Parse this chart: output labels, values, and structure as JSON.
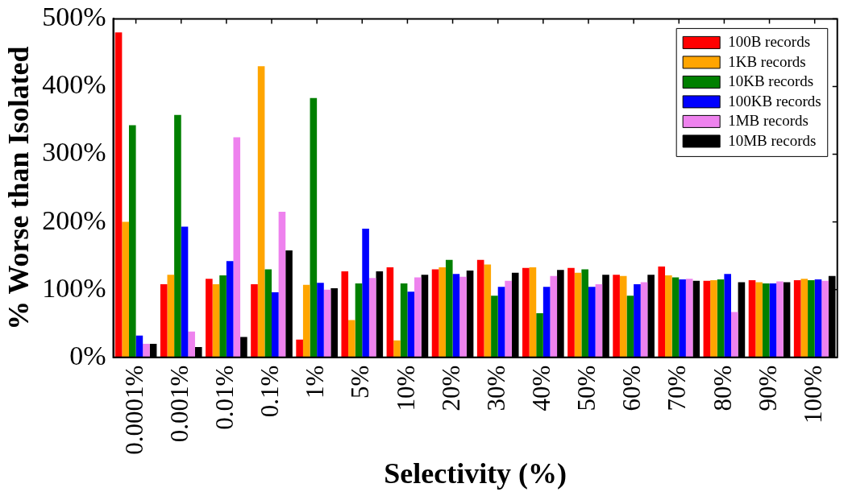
{
  "chart_data": {
    "type": "bar",
    "xlabel": "Selectivity (%)",
    "ylabel": "% Worse than Isolated",
    "categories": [
      "0.0001%",
      "0.001%",
      "0.01%",
      "0.1%",
      "1%",
      "5%",
      "10%",
      "20%",
      "30%",
      "40%",
      "50%",
      "60%",
      "70%",
      "80%",
      "90%",
      "100%"
    ],
    "series": [
      {
        "name": "100B records",
        "color": "#ff0000",
        "values": [
          480,
          108,
          116,
          108,
          26,
          127,
          133,
          130,
          144,
          132,
          132,
          122,
          134,
          113,
          114,
          114
        ]
      },
      {
        "name": "1KB records",
        "color": "#ffa500",
        "values": [
          200,
          122,
          108,
          430,
          107,
          55,
          25,
          133,
          137,
          133,
          125,
          120,
          121,
          114,
          111,
          116
        ]
      },
      {
        "name": "10KB records",
        "color": "#008000",
        "values": [
          343,
          358,
          121,
          130,
          383,
          109,
          109,
          144,
          91,
          65,
          130,
          91,
          118,
          115,
          109,
          114
        ]
      },
      {
        "name": "100KB records",
        "color": "#0000ff",
        "values": [
          32,
          193,
          142,
          96,
          110,
          190,
          97,
          123,
          104,
          104,
          104,
          108,
          115,
          123,
          109,
          115
        ]
      },
      {
        "name": "1MB records",
        "color": "#ee82ee",
        "values": [
          20,
          38,
          325,
          215,
          100,
          117,
          118,
          119,
          113,
          120,
          108,
          111,
          116,
          67,
          112,
          113
        ]
      },
      {
        "name": "10MB records",
        "color": "#000000",
        "values": [
          20,
          15,
          30,
          158,
          102,
          127,
          122,
          128,
          125,
          129,
          122,
          122,
          113,
          111,
          111,
          120
        ]
      }
    ],
    "ylim": [
      0,
      500
    ],
    "yticks": [
      {
        "value": 0,
        "label": "0%"
      },
      {
        "value": 100,
        "label": "100%"
      },
      {
        "value": 200,
        "label": "200%"
      },
      {
        "value": 300,
        "label": "300%"
      },
      {
        "value": 400,
        "label": "400%"
      },
      {
        "value": 500,
        "label": "500%"
      }
    ],
    "grid": false,
    "legend": "top right"
  }
}
